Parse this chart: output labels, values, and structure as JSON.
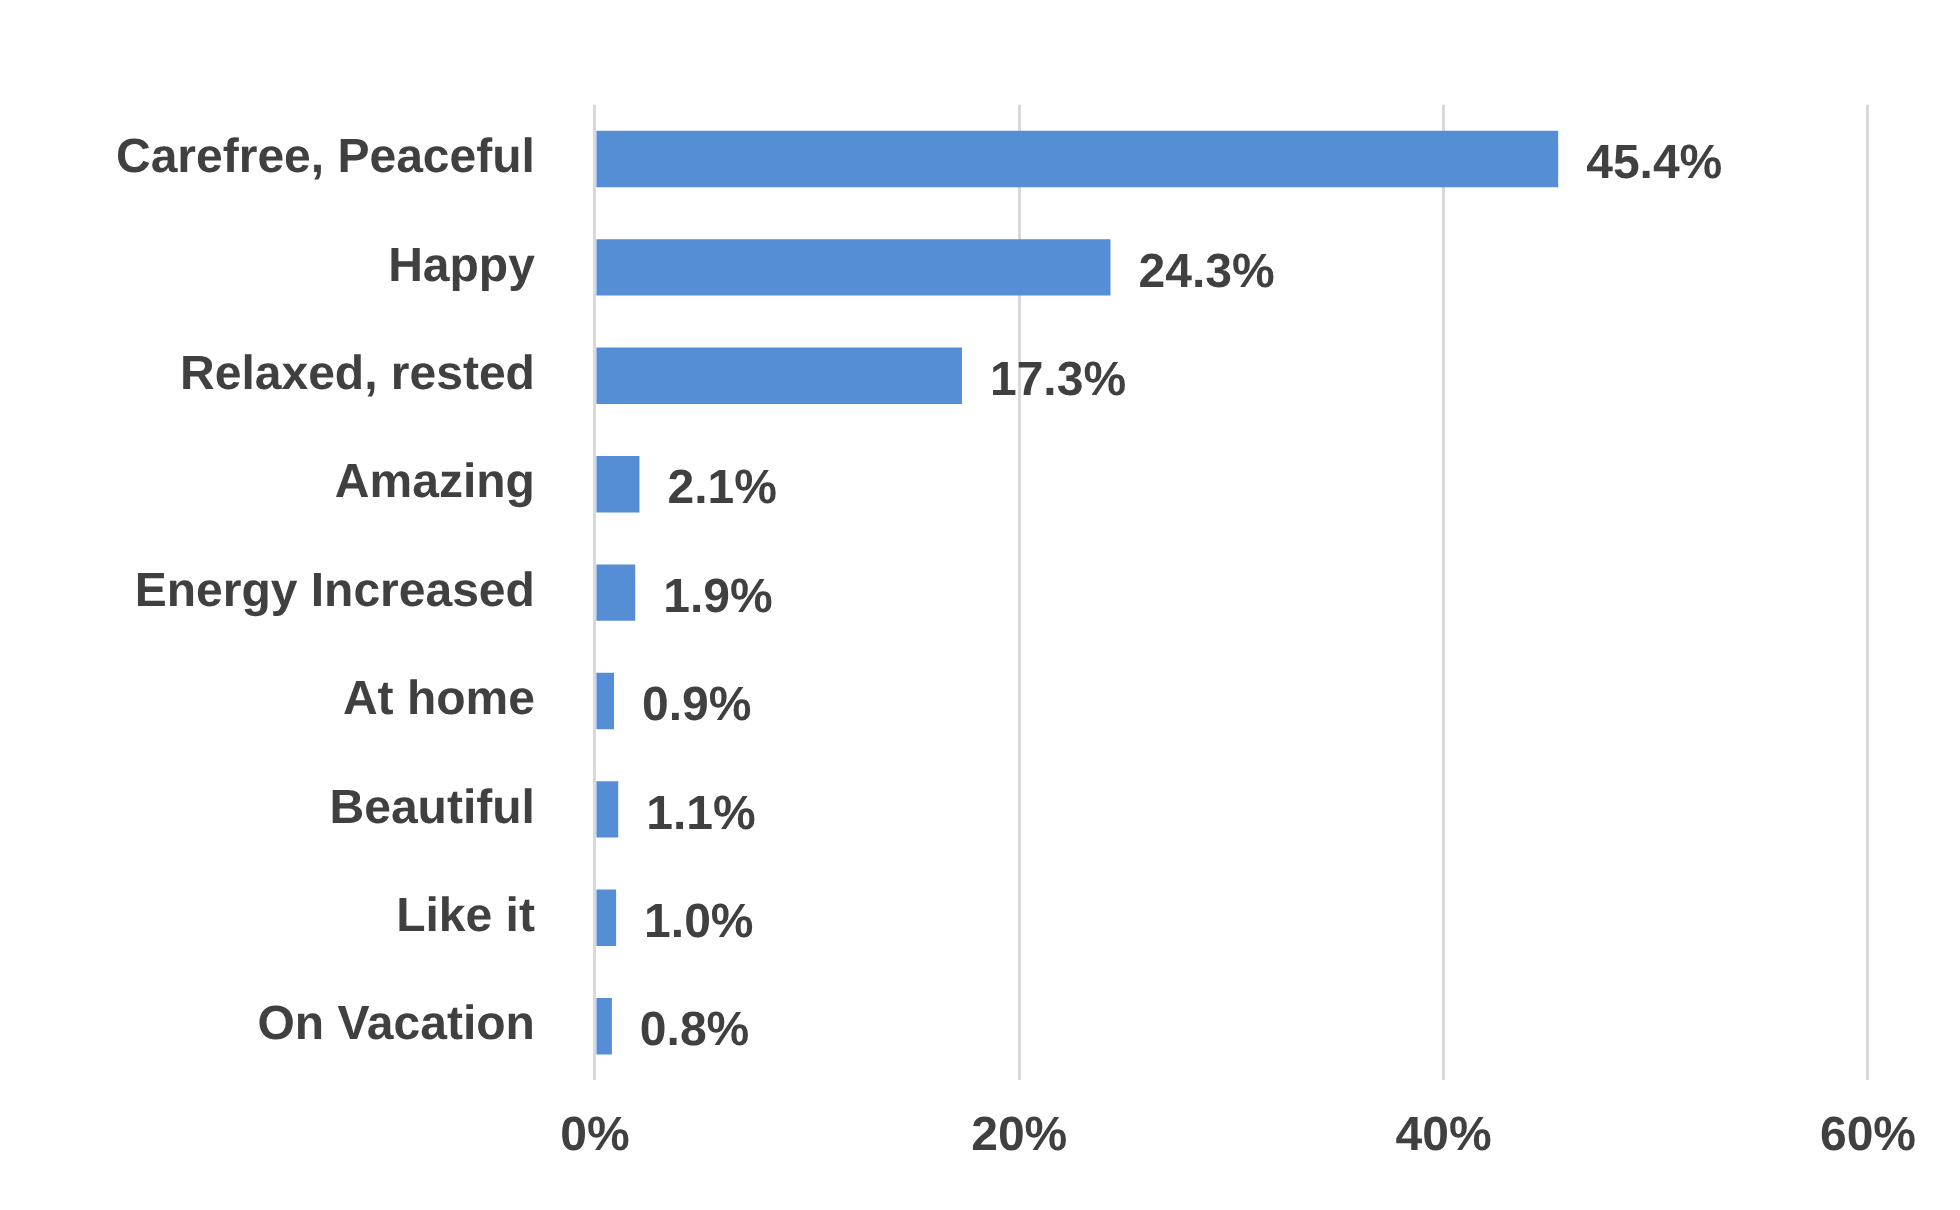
{
  "chart_data": {
    "type": "bar",
    "orientation": "horizontal",
    "categories": [
      "Carefree, Peaceful",
      "Happy",
      "Relaxed, rested",
      "Amazing",
      "Energy Increased",
      "At home",
      "Beautiful",
      "Like it",
      "On Vacation"
    ],
    "values": [
      45.4,
      24.3,
      17.3,
      2.1,
      1.9,
      0.9,
      1.1,
      1.0,
      0.8
    ],
    "value_labels": [
      "45.4%",
      "24.3%",
      "17.3%",
      "2.1%",
      "1.9%",
      "0.9%",
      "1.1%",
      "1.0%",
      "0.8%"
    ],
    "color": "#558ed5",
    "xlim": [
      0,
      60
    ],
    "xticks": [
      {
        "value": 0,
        "label": "0%"
      },
      {
        "value": 20,
        "label": "20%"
      },
      {
        "value": 40,
        "label": "40%"
      },
      {
        "value": 60,
        "label": "60%"
      }
    ],
    "grid": "x"
  }
}
